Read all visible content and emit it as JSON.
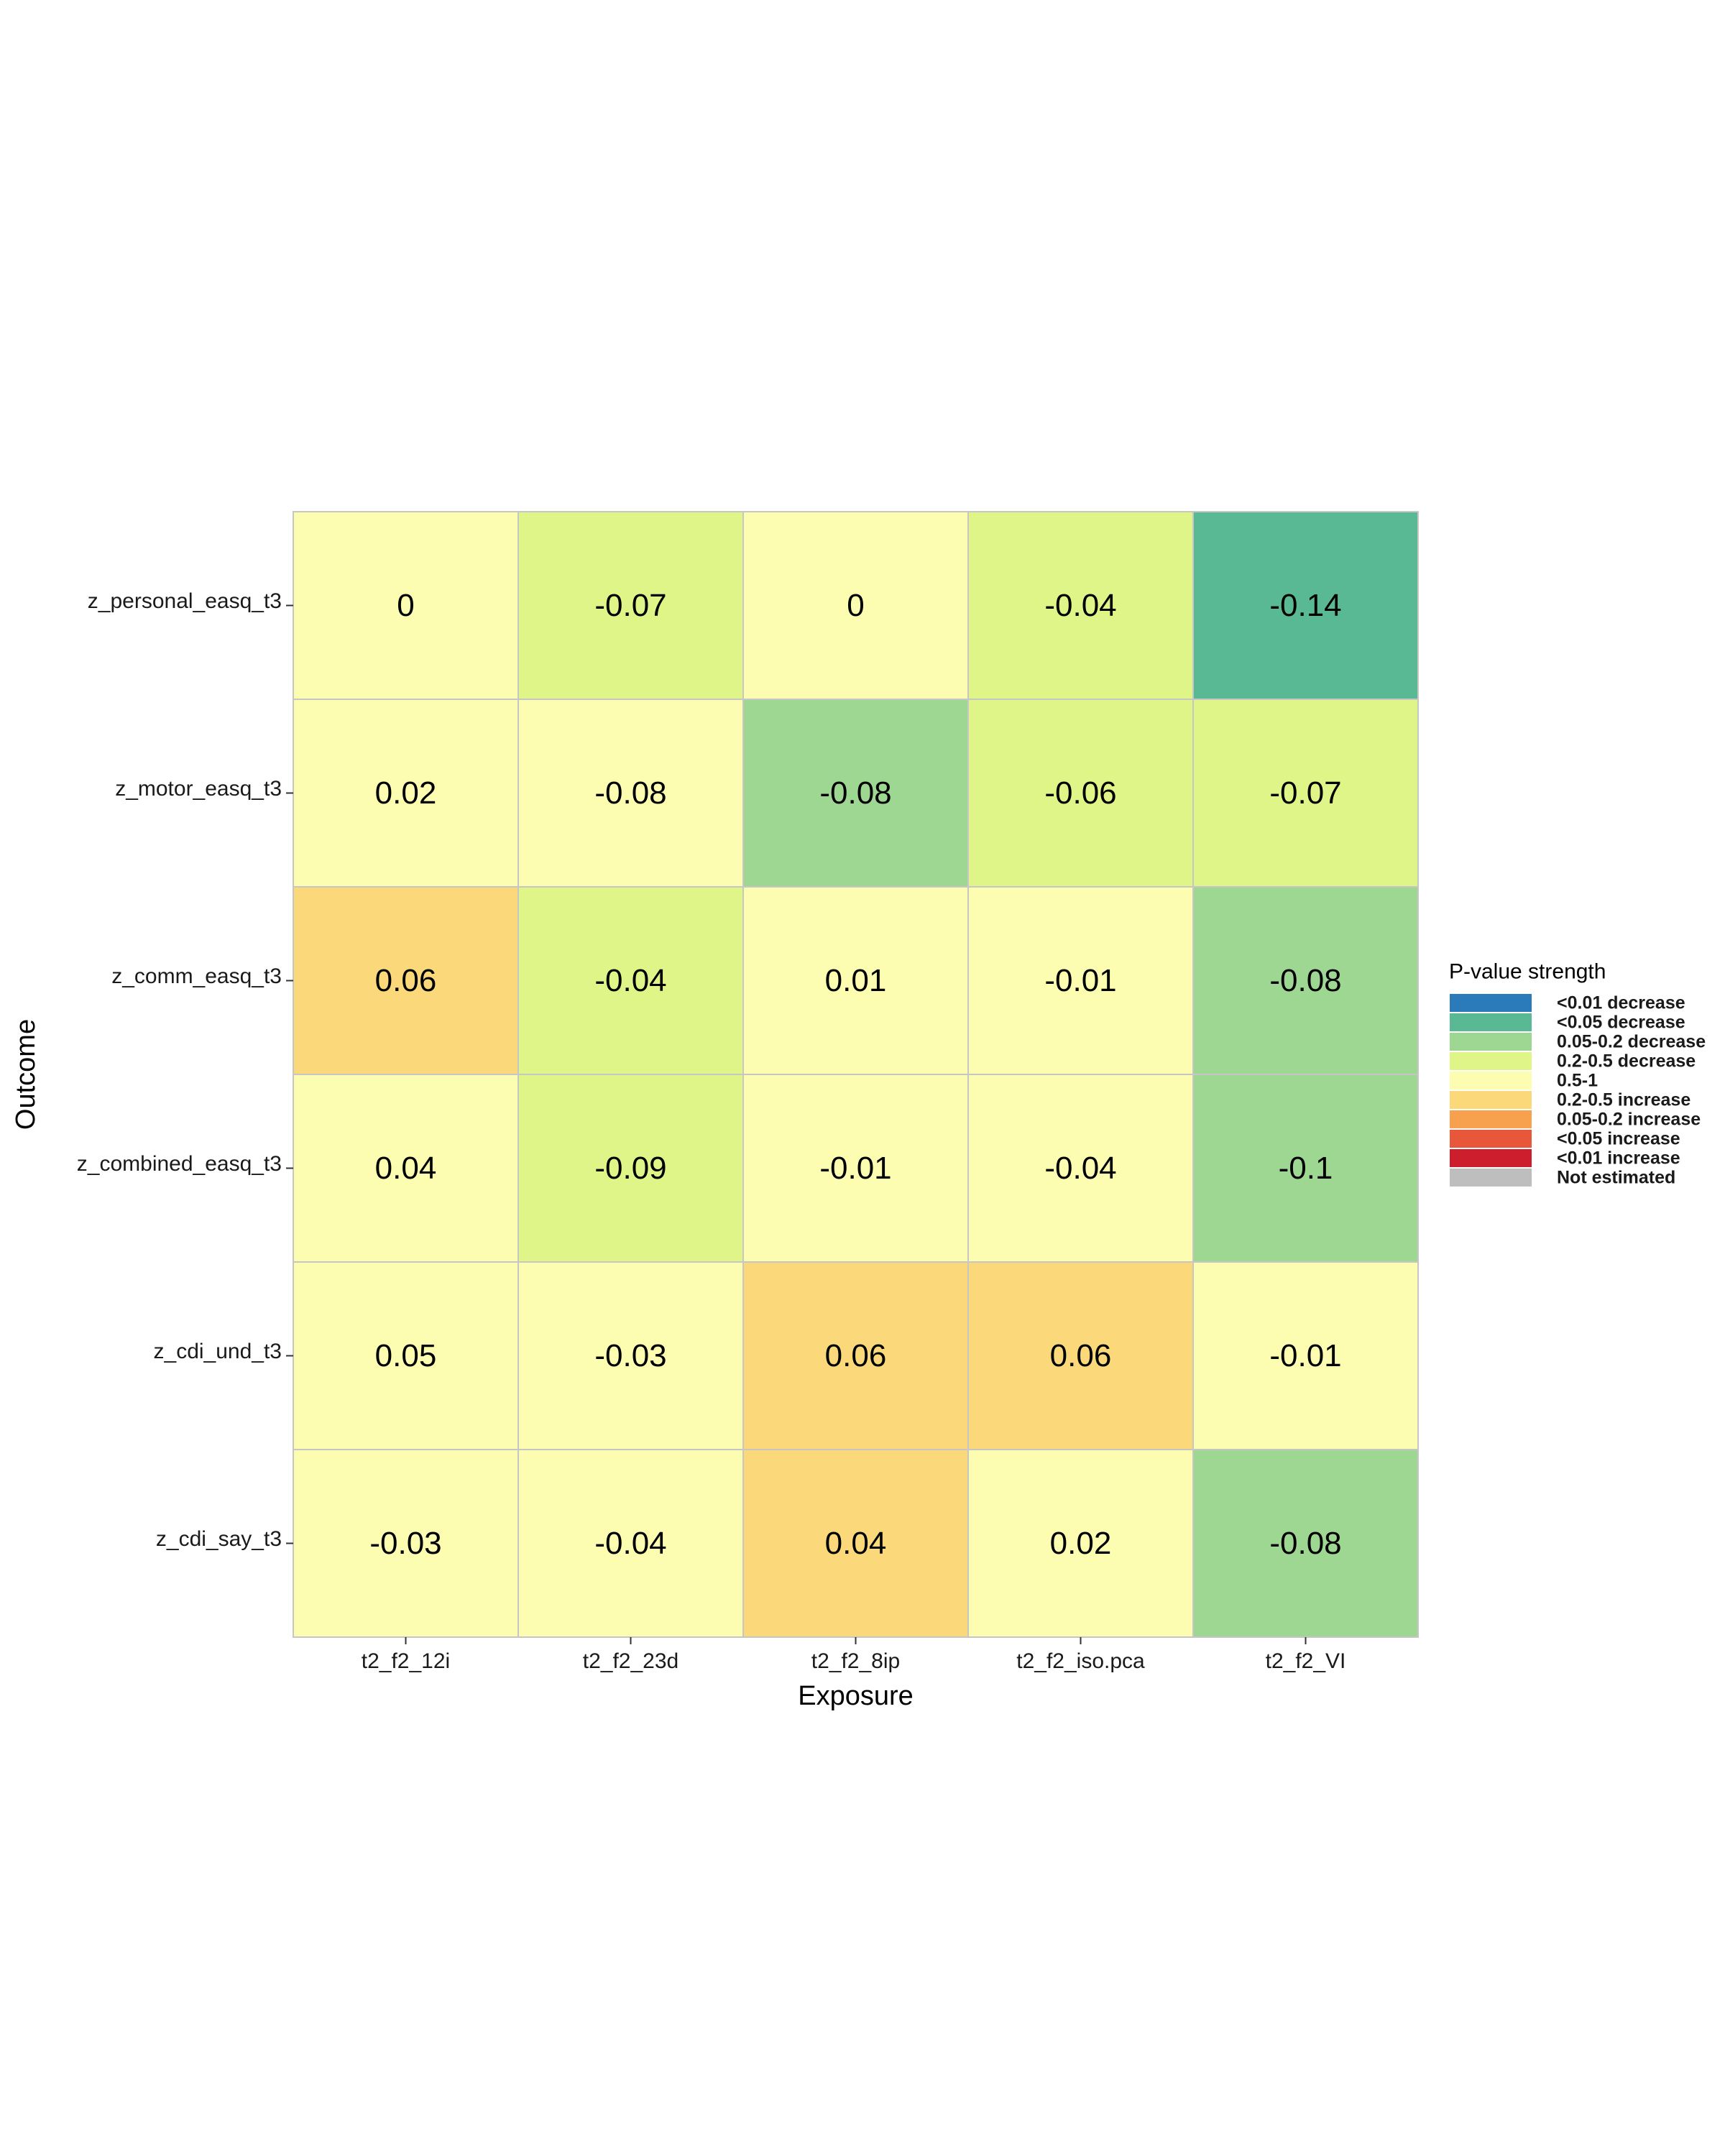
{
  "chart_data": {
    "type": "heatmap",
    "title": "",
    "xlabel": "Exposure",
    "ylabel": "Outcome",
    "x": [
      "t2_f2_12i",
      "t2_f2_23d",
      "t2_f2_8ip",
      "t2_f2_iso.pca",
      "t2_f2_VI"
    ],
    "y": [
      "z_personal_easq_t3",
      "z_motor_easq_t3",
      "z_comm_easq_t3",
      "z_combined_easq_t3",
      "z_cdi_und_t3",
      "z_cdi_say_t3"
    ],
    "cells": [
      [
        {
          "label": "0",
          "category": "0.5-1"
        },
        {
          "label": "-0.07",
          "category": "0.2-0.5 decrease"
        },
        {
          "label": "0",
          "category": "0.5-1"
        },
        {
          "label": "-0.04",
          "category": "0.2-0.5 decrease"
        },
        {
          "label": "-0.14",
          "category": "<0.05 decrease"
        }
      ],
      [
        {
          "label": "0.02",
          "category": "0.5-1"
        },
        {
          "label": "-0.08",
          "category": "0.5-1"
        },
        {
          "label": "-0.08",
          "category": "0.05-0.2 decrease"
        },
        {
          "label": "-0.06",
          "category": "0.2-0.5 decrease"
        },
        {
          "label": "-0.07",
          "category": "0.2-0.5 decrease"
        }
      ],
      [
        {
          "label": "0.06",
          "category": "0.2-0.5 increase"
        },
        {
          "label": "-0.04",
          "category": "0.2-0.5 decrease"
        },
        {
          "label": "0.01",
          "category": "0.5-1"
        },
        {
          "label": "-0.01",
          "category": "0.5-1"
        },
        {
          "label": "-0.08",
          "category": "0.05-0.2 decrease"
        }
      ],
      [
        {
          "label": "0.04",
          "category": "0.5-1"
        },
        {
          "label": "-0.09",
          "category": "0.2-0.5 decrease"
        },
        {
          "label": "-0.01",
          "category": "0.5-1"
        },
        {
          "label": "-0.04",
          "category": "0.5-1"
        },
        {
          "label": "-0.1",
          "category": "0.05-0.2 decrease"
        }
      ],
      [
        {
          "label": "0.05",
          "category": "0.5-1"
        },
        {
          "label": "-0.03",
          "category": "0.5-1"
        },
        {
          "label": "0.06",
          "category": "0.2-0.5 increase"
        },
        {
          "label": "0.06",
          "category": "0.2-0.5 increase"
        },
        {
          "label": "-0.01",
          "category": "0.5-1"
        }
      ],
      [
        {
          "label": "-0.03",
          "category": "0.5-1"
        },
        {
          "label": "-0.04",
          "category": "0.5-1"
        },
        {
          "label": "0.04",
          "category": "0.2-0.5 increase"
        },
        {
          "label": "0.02",
          "category": "0.5-1"
        },
        {
          "label": "-0.08",
          "category": "0.05-0.2 decrease"
        }
      ]
    ],
    "legend": {
      "title": "P-value strength",
      "placement": "right",
      "entries": [
        {
          "label": "<0.01 decrease",
          "color": "#2b7bba"
        },
        {
          "label": "<0.05 decrease",
          "color": "#58b994"
        },
        {
          "label": "0.05-0.2 decrease",
          "color": "#9dd792"
        },
        {
          "label": "0.2-0.5 decrease",
          "color": "#e0f588"
        },
        {
          "label": "0.5-1",
          "color": "#fdfdb1"
        },
        {
          "label": "0.2-0.5 increase",
          "color": "#fbd97b"
        },
        {
          "label": "0.05-0.2 increase",
          "color": "#f7a14f"
        },
        {
          "label": "<0.05 increase",
          "color": "#e9573a"
        },
        {
          "label": "<0.01 increase",
          "color": "#cc1e2d"
        },
        {
          "label": "Not estimated",
          "color": "#bebebe"
        }
      ]
    }
  }
}
